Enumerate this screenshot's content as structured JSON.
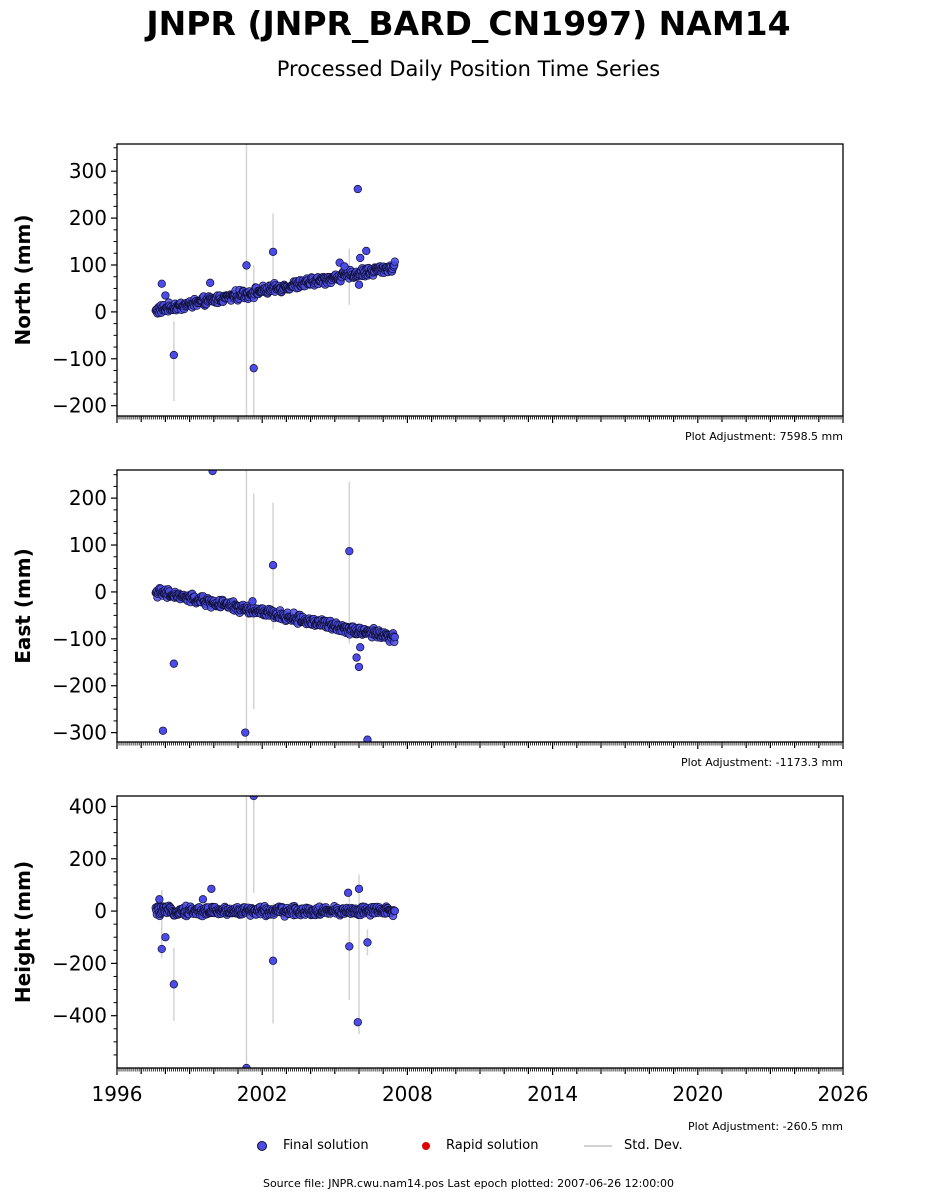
{
  "header": {
    "title": "JNPR (JNPR_BARD_CN1997) NAM14",
    "subtitle": "Processed Daily Position Time Series"
  },
  "legend": {
    "final": "Final solution",
    "rapid": "Rapid solution",
    "stddev": "Std. Dev."
  },
  "footer": {
    "source": "Source file: JNPR.cwu.nam14.pos  Last epoch plotted: 2007-06-26 12:00:00"
  },
  "colors": {
    "final_fill": "#4b4bea",
    "final_edge": "#101030",
    "rapid_fill": "#e00000",
    "stddev_line": "#d3d3d3"
  },
  "chart_data": [
    {
      "type": "scatter",
      "ylabel": "North (mm)",
      "adjustment": "Plot Adjustment: 7598.5 mm",
      "xlim": [
        1996,
        2026
      ],
      "ylim": [
        -222,
        358
      ],
      "yticks": [
        -200,
        -100,
        0,
        100,
        200,
        300
      ],
      "trend": {
        "x": [
          1997.6,
          2007.48
        ],
        "y": [
          3,
          96
        ]
      },
      "outliers": [
        {
          "x": 1997.85,
          "y": 60
        },
        {
          "x": 1998.0,
          "y": 35
        },
        {
          "x": 1998.35,
          "y": -92
        },
        {
          "x": 1999.85,
          "y": 62
        },
        {
          "x": 2001.35,
          "y": 99
        },
        {
          "x": 2001.65,
          "y": -120
        },
        {
          "x": 2002.45,
          "y": 128
        },
        {
          "x": 2005.2,
          "y": 105
        },
        {
          "x": 2005.4,
          "y": 97
        },
        {
          "x": 2005.95,
          "y": 262
        },
        {
          "x": 2006.0,
          "y": 58
        },
        {
          "x": 2006.05,
          "y": 115
        },
        {
          "x": 2006.3,
          "y": 130
        }
      ],
      "error_bars": [
        {
          "x": 1998.35,
          "y0": -190,
          "y1": -20
        },
        {
          "x": 2001.35,
          "y0": -222,
          "y1": 358
        },
        {
          "x": 2001.65,
          "y0": -222,
          "y1": 100
        },
        {
          "x": 2002.45,
          "y0": 40,
          "y1": 210
        },
        {
          "x": 2005.6,
          "y0": 15,
          "y1": 135
        }
      ]
    },
    {
      "type": "scatter",
      "ylabel": "East (mm)",
      "adjustment": "Plot Adjustment: -1173.3 mm",
      "xlim": [
        1996,
        2026
      ],
      "ylim": [
        -320,
        260
      ],
      "yticks": [
        -300,
        -200,
        -100,
        0,
        100,
        200
      ],
      "trend": {
        "x": [
          1997.6,
          2007.48
        ],
        "y": [
          0,
          -97
        ]
      },
      "outliers": [
        {
          "x": 1997.9,
          "y": -296
        },
        {
          "x": 1998.35,
          "y": -153
        },
        {
          "x": 1999.95,
          "y": 258
        },
        {
          "x": 2001.3,
          "y": -300
        },
        {
          "x": 2001.6,
          "y": -20
        },
        {
          "x": 2002.45,
          "y": 57
        },
        {
          "x": 2005.6,
          "y": 87
        },
        {
          "x": 2005.9,
          "y": -140
        },
        {
          "x": 2006.0,
          "y": -160
        },
        {
          "x": 2006.05,
          "y": -118
        },
        {
          "x": 2006.35,
          "y": -315
        }
      ],
      "error_bars": [
        {
          "x": 2001.35,
          "y0": -320,
          "y1": 260
        },
        {
          "x": 2001.65,
          "y0": -250,
          "y1": 210
        },
        {
          "x": 2002.45,
          "y0": -80,
          "y1": 190
        },
        {
          "x": 2005.6,
          "y0": -110,
          "y1": 235
        }
      ]
    },
    {
      "type": "scatter",
      "ylabel": "Height (mm)",
      "adjustment": "Plot Adjustment: -260.5 mm",
      "xlim": [
        1996,
        2026
      ],
      "ylim": [
        -600,
        440
      ],
      "yticks": [
        -400,
        -200,
        0,
        200,
        400
      ],
      "xticks": [
        1996,
        2002,
        2008,
        2014,
        2020,
        2026
      ],
      "trend": {
        "x": [
          1997.6,
          2007.48
        ],
        "y": [
          0,
          0
        ]
      },
      "outliers": [
        {
          "x": 1997.75,
          "y": 45
        },
        {
          "x": 1997.85,
          "y": -145
        },
        {
          "x": 1998.0,
          "y": -100
        },
        {
          "x": 1998.35,
          "y": -280
        },
        {
          "x": 1999.55,
          "y": 45
        },
        {
          "x": 1999.9,
          "y": 85
        },
        {
          "x": 2001.35,
          "y": -600
        },
        {
          "x": 2001.65,
          "y": 440
        },
        {
          "x": 2002.45,
          "y": -190
        },
        {
          "x": 2005.55,
          "y": 70
        },
        {
          "x": 2005.6,
          "y": -135
        },
        {
          "x": 2005.95,
          "y": -425
        },
        {
          "x": 2006.0,
          "y": 85
        },
        {
          "x": 2006.35,
          "y": -120
        }
      ],
      "error_bars": [
        {
          "x": 1997.85,
          "y0": -180,
          "y1": 80
        },
        {
          "x": 1998.35,
          "y0": -420,
          "y1": -140
        },
        {
          "x": 2001.35,
          "y0": -600,
          "y1": 440
        },
        {
          "x": 2001.65,
          "y0": 70,
          "y1": 440
        },
        {
          "x": 2002.45,
          "y0": -430,
          "y1": 30
        },
        {
          "x": 2005.6,
          "y0": -340,
          "y1": 80
        },
        {
          "x": 2006.0,
          "y0": -470,
          "y1": 140
        },
        {
          "x": 2006.35,
          "y0": -170,
          "y1": -70
        }
      ]
    }
  ]
}
